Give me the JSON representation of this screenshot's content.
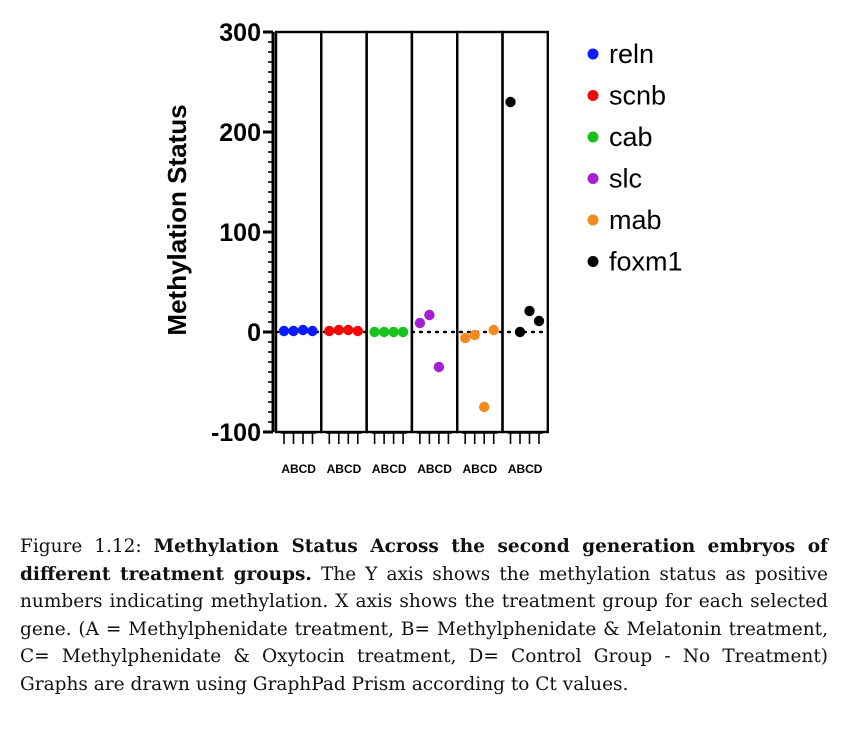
{
  "chart_data": {
    "type": "scatter",
    "ylabel": "Methylation Status",
    "ylim": [
      -100,
      300
    ],
    "yticks": [
      "300",
      "200",
      "100",
      "0",
      "-100"
    ],
    "categories": [
      "ABCD",
      "ABCD",
      "ABCD",
      "ABCD",
      "ABCD",
      "ABCD"
    ],
    "reference_line": 0,
    "series": [
      {
        "name": "reln",
        "color": "#0a1bff",
        "values": [
          1,
          1,
          2,
          1
        ]
      },
      {
        "name": "scnb",
        "color": "#f00a0a",
        "values": [
          1,
          2,
          2,
          1
        ]
      },
      {
        "name": "cab",
        "color": "#16c21c",
        "values": [
          0,
          0,
          0,
          0
        ]
      },
      {
        "name": "slc",
        "color": "#a21fd4",
        "values": [
          9,
          17,
          -35,
          null
        ]
      },
      {
        "name": "mab",
        "color": "#f28a1e",
        "values": [
          -6,
          -3,
          -75,
          2
        ]
      },
      {
        "name": "foxm1",
        "color": "#000000",
        "values": [
          230,
          0,
          21,
          11
        ]
      }
    ],
    "legend_position": "right",
    "grid": false
  },
  "caption": {
    "label": "Figure 1.12:",
    "title": "Methylation Status Across the second generation embryos of different treatment groups.",
    "body": "The Y axis shows the methylation status as positive numbers indicating methylation. X axis shows the treatment group for each selected gene. (A = Methylphenidate treatment, B= Methylphenidate & Melatonin treatment, C= Methylphenidate & Oxytocin treatment, D= Control Group - No Treatment) Graphs are drawn using GraphPad Prism according to Ct values."
  }
}
